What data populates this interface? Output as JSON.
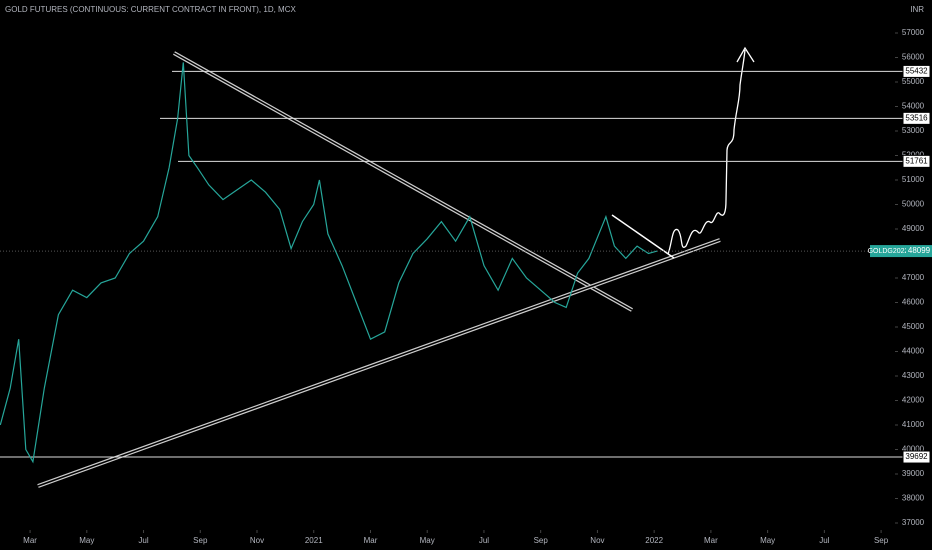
{
  "chart_data": {
    "type": "line",
    "title": "GOLD FUTURES (CONTINUOUS: CURRENT CONTRACT IN FRONT), 1D, MCX",
    "currency": "INR",
    "x": [
      0.95,
      1.3,
      1.6,
      1.85,
      2.1,
      2.5,
      3.0,
      3.5,
      4.0,
      4.5,
      5.0,
      5.5,
      6.0,
      6.5,
      6.9,
      7.2,
      7.4,
      7.6,
      7.9,
      8.3,
      8.8,
      9.3,
      9.8,
      10.3,
      10.8,
      11.2,
      11.6,
      12.0,
      12.2,
      12.5,
      13.0,
      13.5,
      14.0,
      14.5,
      15.0,
      15.5,
      16.0,
      16.5,
      17.0,
      17.5,
      18.0,
      18.5,
      19.0,
      19.5,
      20.0,
      20.5,
      20.9,
      21.3,
      21.7,
      22.3,
      22.6,
      23.0,
      23.4,
      23.8,
      24.1
    ],
    "series": [
      {
        "name": "GOLDG2022",
        "color": "#26a69a",
        "values": [
          41000,
          42500,
          44500,
          40000,
          39500,
          42500,
          45500,
          46500,
          46200,
          46800,
          47000,
          48000,
          48500,
          49500,
          51500,
          53500,
          55800,
          52000,
          51500,
          50800,
          50200,
          50600,
          51000,
          50500,
          49800,
          48200,
          49300,
          50000,
          51000,
          48800,
          47500,
          46000,
          44500,
          44800,
          46800,
          48000,
          48600,
          49300,
          48500,
          49500,
          47500,
          46500,
          47800,
          47000,
          46500,
          46000,
          45800,
          47200,
          47800,
          49500,
          48300,
          47800,
          48300,
          48000,
          48099
        ]
      }
    ],
    "levels": [
      55432,
      53516,
      51761,
      39692
    ],
    "xlim": [
      0.94,
      32.49
    ],
    "ylim": [
      36714,
      58347
    ],
    "xticks": [
      {
        "value": 2,
        "label": "Mar"
      },
      {
        "value": 4,
        "label": "May"
      },
      {
        "value": 6,
        "label": "Jul"
      },
      {
        "value": 8,
        "label": "Sep"
      },
      {
        "value": 10,
        "label": "Nov"
      },
      {
        "value": 12,
        "label": "2021"
      },
      {
        "value": 14,
        "label": "Mar"
      },
      {
        "value": 16,
        "label": "May"
      },
      {
        "value": 18,
        "label": "Jul"
      },
      {
        "value": 20,
        "label": "Sep"
      },
      {
        "value": 22,
        "label": "Nov"
      },
      {
        "value": 24,
        "label": "2022"
      },
      {
        "value": 26,
        "label": "Mar"
      },
      {
        "value": 28,
        "label": "May"
      },
      {
        "value": 30,
        "label": "Jul"
      },
      {
        "value": 32,
        "label": "Sep"
      }
    ],
    "yticks": [
      37000,
      38000,
      39000,
      40000,
      41000,
      42000,
      43000,
      44000,
      45000,
      46000,
      47000,
      48000,
      49000,
      50000,
      51000,
      52000,
      53000,
      54000,
      55000,
      56000,
      57000
    ]
  }
}
